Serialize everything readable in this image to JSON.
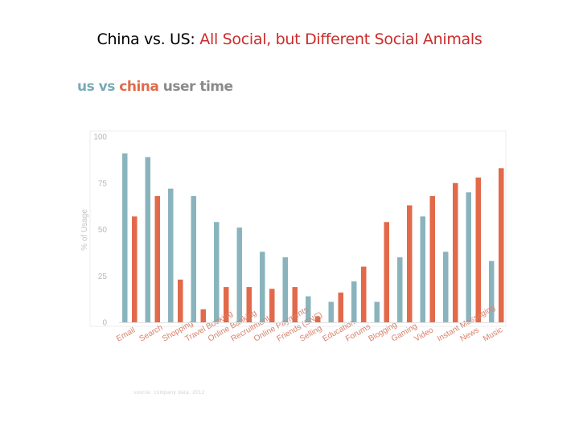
{
  "slide": {
    "title_prefix": "China vs. US: ",
    "title_accent": "All Social, but Different Social Animals"
  },
  "heading": {
    "us": "us",
    "vs": " vs ",
    "china": "china",
    "rest": " user time"
  },
  "source": "source: company data, 2012",
  "colors": {
    "us": "#8ab4bd",
    "china": "#e2694a",
    "axis": "#dddddd",
    "tick_text": "#b8b8b8",
    "label_text": "#d8806a"
  },
  "chart_data": {
    "type": "bar",
    "title": "US vs China User Time",
    "xlabel": "",
    "ylabel": "% of Usage",
    "ylim": [
      0,
      100
    ],
    "yticks": [
      0,
      25,
      50,
      75,
      100
    ],
    "categories": [
      "Email",
      "Search",
      "Shopping",
      "Travel Booking",
      "Online Banking",
      "Recruitment",
      "Online Payments",
      "Friends (SNS)",
      "Selling",
      "Education",
      "Forums",
      "Blogging",
      "Gaming",
      "Video",
      "Instant Messaging",
      "News",
      "Music"
    ],
    "series": [
      {
        "name": "US",
        "values": [
          91,
          89,
          72,
          68,
          54,
          51,
          38,
          35,
          14,
          11,
          22,
          11,
          35,
          57,
          38,
          70,
          33
        ]
      },
      {
        "name": "China",
        "values": [
          57,
          68,
          23,
          7,
          19,
          19,
          18,
          19,
          3,
          16,
          30,
          54,
          63,
          68,
          75,
          78,
          83
        ]
      }
    ]
  }
}
